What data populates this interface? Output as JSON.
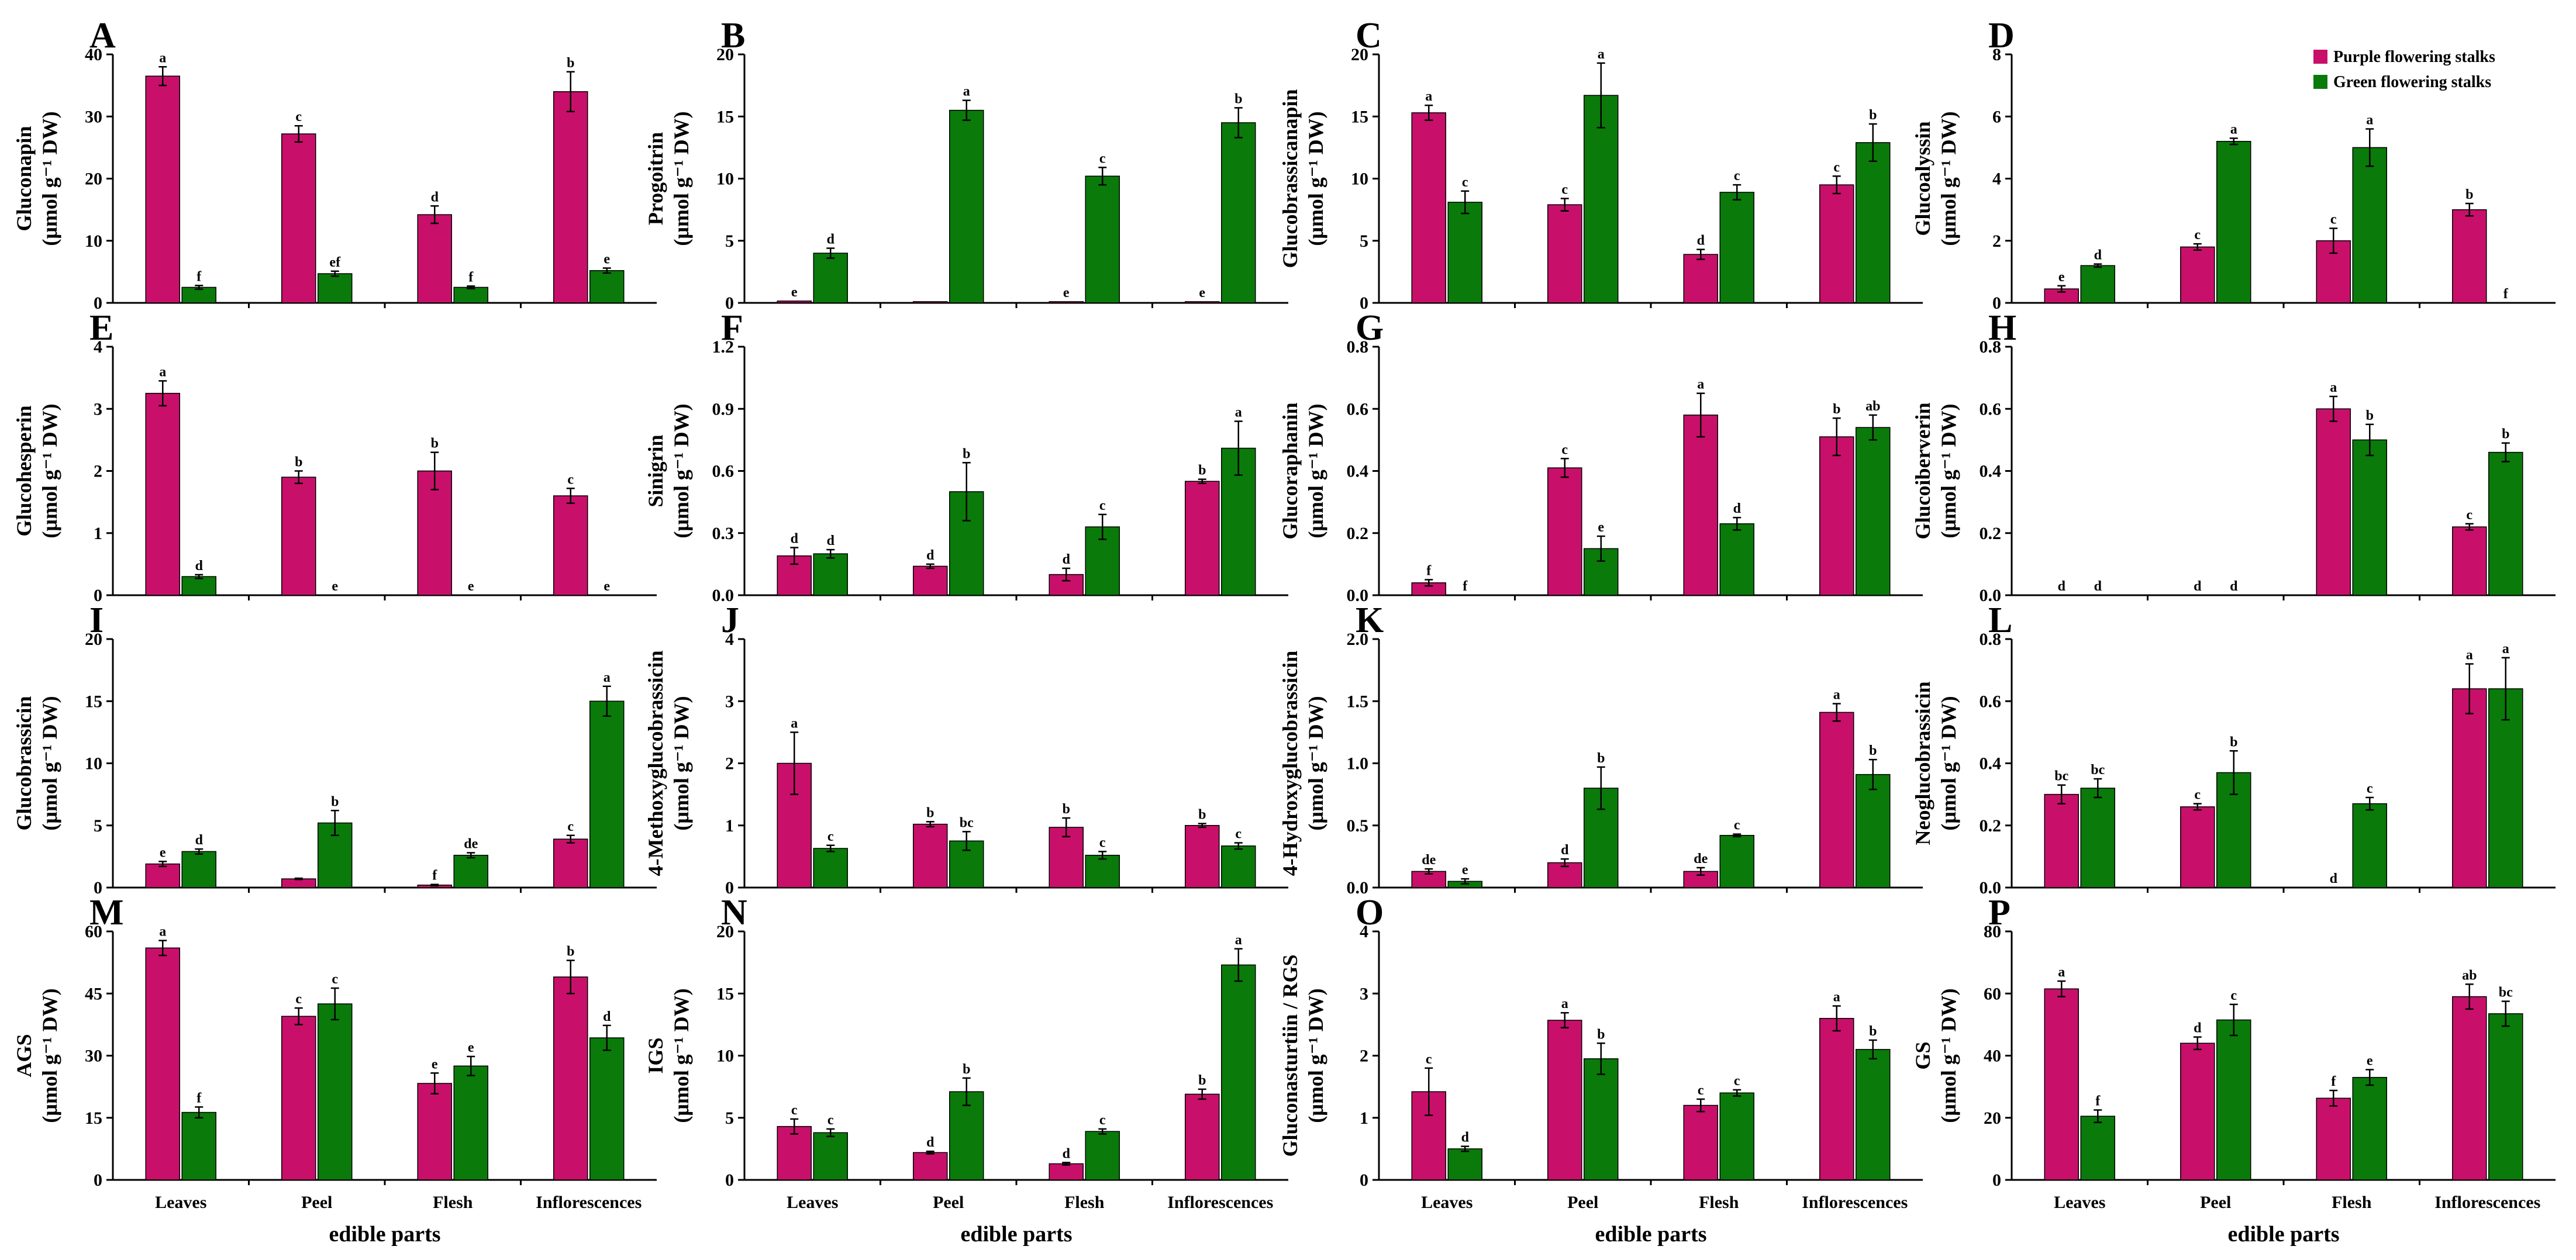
{
  "colors": {
    "purple": "#C8106A",
    "green": "#0A7A0A"
  },
  "legend": {
    "purple": "Purple flowering stalks",
    "green": "Green flowering stalks"
  },
  "xlabel": "edible parts",
  "chart_data": [
    {
      "panel": "A",
      "type": "bar",
      "ylabel1": "Gluconapin",
      "ylabel2": "(μmol g⁻¹ DW)",
      "ylim": [
        0,
        40
      ],
      "ticks": [
        "0",
        "10",
        "20",
        "30",
        "40"
      ],
      "categories": [
        "Leaves",
        "Peel",
        "Flesh",
        "Inflorescences"
      ],
      "series": [
        {
          "name": "Purple flowering stalks",
          "values": [
            36.5,
            27.2,
            14.2,
            34.0
          ],
          "errors": [
            1.5,
            1.3,
            1.4,
            3.2
          ],
          "letters": [
            "a",
            "c",
            "d",
            "b"
          ]
        },
        {
          "name": "Green flowering stalks",
          "values": [
            2.5,
            4.7,
            2.5,
            5.2
          ],
          "errors": [
            0.3,
            0.4,
            0.2,
            0.4
          ],
          "letters": [
            "f",
            "ef",
            "f",
            "e"
          ]
        }
      ]
    },
    {
      "panel": "B",
      "type": "bar",
      "ylabel1": "Progoitrin",
      "ylabel2": "(μmol g⁻¹ DW)",
      "ylim": [
        0,
        20
      ],
      "ticks": [
        "0",
        "5",
        "10",
        "15",
        "20"
      ],
      "categories": [
        "Leaves",
        "Peel",
        "Flesh",
        "Inflorescences"
      ],
      "series": [
        {
          "name": "Purple flowering stalks",
          "values": [
            0.15,
            0.1,
            0.1,
            0.1
          ],
          "errors": [
            0,
            0,
            0,
            0
          ],
          "letters": [
            "e",
            "",
            "e",
            "e"
          ]
        },
        {
          "name": "Green flowering stalks",
          "values": [
            4.0,
            15.5,
            10.2,
            14.5
          ],
          "errors": [
            0.4,
            0.8,
            0.7,
            1.2
          ],
          "letters": [
            "d",
            "a",
            "c",
            "b"
          ]
        }
      ]
    },
    {
      "panel": "C",
      "type": "bar",
      "ylabel1": "Glucobrassicanapin",
      "ylabel2": "(μmol g⁻¹ DW)",
      "ylim": [
        0,
        20
      ],
      "ticks": [
        "0",
        "5",
        "10",
        "15",
        "20"
      ],
      "categories": [
        "Leaves",
        "Peel",
        "Flesh",
        "Inflorescences"
      ],
      "series": [
        {
          "name": "Purple flowering stalks",
          "values": [
            15.3,
            7.9,
            3.9,
            9.5
          ],
          "errors": [
            0.6,
            0.5,
            0.4,
            0.7
          ],
          "letters": [
            "a",
            "c",
            "d",
            "c"
          ]
        },
        {
          "name": "Green flowering stalks",
          "values": [
            8.1,
            16.7,
            8.9,
            12.9
          ],
          "errors": [
            0.9,
            2.6,
            0.6,
            1.5
          ],
          "letters": [
            "c",
            "a",
            "c",
            "b"
          ]
        }
      ]
    },
    {
      "panel": "D",
      "type": "bar",
      "ylabel1": "Glucoalyssin",
      "ylabel2": "(μmol g⁻¹ DW)",
      "ylim": [
        0,
        8
      ],
      "ticks": [
        "0",
        "2",
        "4",
        "6",
        "8"
      ],
      "categories": [
        "Leaves",
        "Peel",
        "Flesh",
        "Inflorescences"
      ],
      "series": [
        {
          "name": "Purple flowering stalks",
          "values": [
            0.45,
            1.8,
            2.0,
            3.0
          ],
          "errors": [
            0.1,
            0.1,
            0.4,
            0.2
          ],
          "letters": [
            "e",
            "c",
            "c",
            "b"
          ]
        },
        {
          "name": "Green flowering stalks",
          "values": [
            1.2,
            5.2,
            5.0,
            0.0
          ],
          "errors": [
            0.05,
            0.1,
            0.6,
            0
          ],
          "letters": [
            "d",
            "a",
            "a",
            "f"
          ]
        }
      ]
    },
    {
      "panel": "E",
      "type": "bar",
      "ylabel1": "Glucohesperin",
      "ylabel2": "(μmol g⁻¹ DW)",
      "ylim": [
        0,
        4
      ],
      "ticks": [
        "0",
        "1",
        "2",
        "3",
        "4"
      ],
      "categories": [
        "Leaves",
        "Peel",
        "Flesh",
        "Inflorescences"
      ],
      "series": [
        {
          "name": "Purple flowering stalks",
          "values": [
            3.25,
            1.9,
            2.0,
            1.6
          ],
          "errors": [
            0.2,
            0.1,
            0.3,
            0.12
          ],
          "letters": [
            "a",
            "b",
            "b",
            "c"
          ]
        },
        {
          "name": "Green flowering stalks",
          "values": [
            0.3,
            0.0,
            0.0,
            0.0
          ],
          "errors": [
            0.03,
            0,
            0,
            0
          ],
          "letters": [
            "d",
            "e",
            "e",
            "e"
          ]
        }
      ]
    },
    {
      "panel": "F",
      "type": "bar",
      "ylabel1": "Sinigrin",
      "ylabel2": "(μmol g⁻¹ DW)",
      "ylim": [
        0,
        1.2
      ],
      "ticks": [
        "0.0",
        "0.3",
        "0.6",
        "0.9",
        "1.2"
      ],
      "categories": [
        "Leaves",
        "Peel",
        "Flesh",
        "Inflorescences"
      ],
      "series": [
        {
          "name": "Purple flowering stalks",
          "values": [
            0.19,
            0.14,
            0.1,
            0.55
          ],
          "errors": [
            0.04,
            0.01,
            0.03,
            0.01
          ],
          "letters": [
            "d",
            "d",
            "d",
            "b"
          ]
        },
        {
          "name": "Green flowering stalks",
          "values": [
            0.2,
            0.5,
            0.33,
            0.71
          ],
          "errors": [
            0.02,
            0.14,
            0.06,
            0.13
          ],
          "letters": [
            "d",
            "b",
            "c",
            "a"
          ]
        }
      ]
    },
    {
      "panel": "G",
      "type": "bar",
      "ylabel1": "Glucoraphanin",
      "ylabel2": "(μmol g⁻¹ DW)",
      "ylim": [
        0,
        0.8
      ],
      "ticks": [
        "0.0",
        "0.2",
        "0.4",
        "0.6",
        "0.8"
      ],
      "categories": [
        "Leaves",
        "Peel",
        "Flesh",
        "Inflorescences"
      ],
      "series": [
        {
          "name": "Purple flowering stalks",
          "values": [
            0.04,
            0.41,
            0.58,
            0.51
          ],
          "errors": [
            0.01,
            0.03,
            0.07,
            0.06
          ],
          "letters": [
            "f",
            "c",
            "a",
            "b"
          ]
        },
        {
          "name": "Green flowering stalks",
          "values": [
            0.0,
            0.15,
            0.23,
            0.54
          ],
          "errors": [
            0,
            0.04,
            0.02,
            0.04
          ],
          "letters": [
            "f",
            "e",
            "d",
            "ab"
          ]
        }
      ]
    },
    {
      "panel": "H",
      "type": "bar",
      "ylabel1": "Glucoiberverin",
      "ylabel2": "(μmol g⁻¹ DW)",
      "ylim": [
        0,
        0.8
      ],
      "ticks": [
        "0.0",
        "0.2",
        "0.4",
        "0.6",
        "0.8"
      ],
      "categories": [
        "Leaves",
        "Peel",
        "Flesh",
        "Inflorescences"
      ],
      "series": [
        {
          "name": "Purple flowering stalks",
          "values": [
            0.0,
            0.0,
            0.6,
            0.22
          ],
          "errors": [
            0,
            0,
            0.04,
            0.01
          ],
          "letters": [
            "d",
            "d",
            "a",
            "c"
          ]
        },
        {
          "name": "Green flowering stalks",
          "values": [
            0.0,
            0.0,
            0.5,
            0.46
          ],
          "errors": [
            0,
            0,
            0.05,
            0.03
          ],
          "letters": [
            "d",
            "d",
            "b",
            "b"
          ]
        }
      ]
    },
    {
      "panel": "I",
      "type": "bar",
      "ylabel1": "Glucobrassicin",
      "ylabel2": "(μmol g⁻¹ DW)",
      "ylim": [
        0,
        20
      ],
      "ticks": [
        "0",
        "5",
        "10",
        "15",
        "20"
      ],
      "categories": [
        "Leaves",
        "Peel",
        "Flesh",
        "Inflorescences"
      ],
      "series": [
        {
          "name": "Purple flowering stalks",
          "values": [
            1.9,
            0.7,
            0.2,
            3.9
          ],
          "errors": [
            0.2,
            0.05,
            0.05,
            0.3
          ],
          "letters": [
            "e",
            "",
            "f",
            "c"
          ]
        },
        {
          "name": "Green flowering stalks",
          "values": [
            2.9,
            5.2,
            2.6,
            15.0
          ],
          "errors": [
            0.2,
            1.0,
            0.2,
            1.2
          ],
          "letters": [
            "d",
            "b",
            "de",
            "a"
          ]
        }
      ]
    },
    {
      "panel": "J",
      "type": "bar",
      "ylabel1": "4-Methoxyglucobrassicin",
      "ylabel2": "(μmol g⁻¹ DW)",
      "ylim": [
        0,
        4
      ],
      "ticks": [
        "0",
        "1",
        "2",
        "3",
        "4"
      ],
      "categories": [
        "Leaves",
        "Peel",
        "Flesh",
        "Inflorescences"
      ],
      "series": [
        {
          "name": "Purple flowering stalks",
          "values": [
            2.0,
            1.02,
            0.97,
            1.0
          ],
          "errors": [
            0.5,
            0.04,
            0.15,
            0.03
          ],
          "letters": [
            "a",
            "b",
            "b",
            "b"
          ]
        },
        {
          "name": "Green flowering stalks",
          "values": [
            0.63,
            0.75,
            0.52,
            0.67
          ],
          "errors": [
            0.05,
            0.15,
            0.06,
            0.05
          ],
          "letters": [
            "c",
            "bc",
            "c",
            "c"
          ]
        }
      ]
    },
    {
      "panel": "K",
      "type": "bar",
      "ylabel1": "4-Hydroxyglucobrassicin",
      "ylabel2": "(μmol g⁻¹ DW)",
      "ylim": [
        0,
        2
      ],
      "ticks": [
        "0.0",
        "0.5",
        "1.0",
        "1.5",
        "2.0"
      ],
      "categories": [
        "Leaves",
        "Peel",
        "Flesh",
        "Inflorescences"
      ],
      "series": [
        {
          "name": "Purple flowering stalks",
          "values": [
            0.13,
            0.2,
            0.13,
            1.41
          ],
          "errors": [
            0.02,
            0.03,
            0.03,
            0.07
          ],
          "letters": [
            "de",
            "d",
            "de",
            "a"
          ]
        },
        {
          "name": "Green flowering stalks",
          "values": [
            0.05,
            0.8,
            0.42,
            0.91
          ],
          "errors": [
            0.02,
            0.17,
            0.01,
            0.12
          ],
          "letters": [
            "e",
            "b",
            "c",
            "b"
          ]
        }
      ]
    },
    {
      "panel": "L",
      "type": "bar",
      "ylabel1": "Neoglucobrassicin",
      "ylabel2": "(μmol g⁻¹ DW)",
      "ylim": [
        0,
        0.8
      ],
      "ticks": [
        "0.0",
        "0.2",
        "0.4",
        "0.6",
        "0.8"
      ],
      "categories": [
        "Leaves",
        "Peel",
        "Flesh",
        "Inflorescences"
      ],
      "series": [
        {
          "name": "Purple flowering stalks",
          "values": [
            0.3,
            0.26,
            0.0,
            0.64
          ],
          "errors": [
            0.03,
            0.01,
            0,
            0.08
          ],
          "letters": [
            "bc",
            "c",
            "d",
            "a"
          ]
        },
        {
          "name": "Green flowering stalks",
          "values": [
            0.32,
            0.37,
            0.27,
            0.64
          ],
          "errors": [
            0.03,
            0.07,
            0.02,
            0.1
          ],
          "letters": [
            "bc",
            "b",
            "c",
            "a"
          ]
        }
      ]
    },
    {
      "panel": "M",
      "type": "bar",
      "ylabel1": "AGS",
      "ylabel2": "(μmol g⁻¹ DW)",
      "ylim": [
        0,
        60
      ],
      "ticks": [
        "0",
        "15",
        "30",
        "45",
        "60"
      ],
      "categories": [
        "Leaves",
        "Peel",
        "Flesh",
        "Inflorescences"
      ],
      "series": [
        {
          "name": "Purple flowering stalks",
          "values": [
            56.0,
            39.5,
            23.3,
            49.0
          ],
          "errors": [
            1.8,
            2.0,
            2.5,
            4.0
          ],
          "letters": [
            "a",
            "c",
            "e",
            "b"
          ]
        },
        {
          "name": "Green flowering stalks",
          "values": [
            16.3,
            42.5,
            27.5,
            34.3
          ],
          "errors": [
            1.3,
            3.8,
            2.3,
            3.0
          ],
          "letters": [
            "f",
            "c",
            "e",
            "d"
          ]
        }
      ]
    },
    {
      "panel": "N",
      "type": "bar",
      "ylabel1": "IGS",
      "ylabel2": "(μmol g⁻¹ DW)",
      "ylim": [
        0,
        20
      ],
      "ticks": [
        "0",
        "5",
        "10",
        "15",
        "20"
      ],
      "categories": [
        "Leaves",
        "Peel",
        "Flesh",
        "Inflorescences"
      ],
      "series": [
        {
          "name": "Purple flowering stalks",
          "values": [
            4.3,
            2.2,
            1.3,
            6.9
          ],
          "errors": [
            0.6,
            0.1,
            0.1,
            0.4
          ],
          "letters": [
            "c",
            "d",
            "d",
            "b"
          ]
        },
        {
          "name": "Green flowering stalks",
          "values": [
            3.8,
            7.1,
            3.9,
            17.3
          ],
          "errors": [
            0.3,
            1.1,
            0.2,
            1.3
          ],
          "letters": [
            "c",
            "b",
            "c",
            "a"
          ]
        }
      ]
    },
    {
      "panel": "O",
      "type": "bar",
      "ylabel1": "Gluconasturtiin / RGS",
      "ylabel2": "(μmol g⁻¹ DW)",
      "ylim": [
        0,
        4
      ],
      "ticks": [
        "0",
        "1",
        "2",
        "3",
        "4"
      ],
      "categories": [
        "Leaves",
        "Peel",
        "Flesh",
        "Inflorescences"
      ],
      "series": [
        {
          "name": "Purple flowering stalks",
          "values": [
            1.42,
            2.57,
            1.2,
            2.6
          ],
          "errors": [
            0.38,
            0.12,
            0.1,
            0.2
          ],
          "letters": [
            "c",
            "a",
            "c",
            "a"
          ]
        },
        {
          "name": "Green flowering stalks",
          "values": [
            0.5,
            1.95,
            1.4,
            2.1
          ],
          "errors": [
            0.04,
            0.25,
            0.05,
            0.15
          ],
          "letters": [
            "d",
            "b",
            "c",
            "b"
          ]
        }
      ]
    },
    {
      "panel": "P",
      "type": "bar",
      "ylabel1": "GS",
      "ylabel2": "(μmol g⁻¹ DW)",
      "ylim": [
        0,
        80
      ],
      "ticks": [
        "0",
        "20",
        "40",
        "60",
        "80"
      ],
      "categories": [
        "Leaves",
        "Peel",
        "Flesh",
        "Inflorescences"
      ],
      "series": [
        {
          "name": "Purple flowering stalks",
          "values": [
            61.5,
            44.0,
            26.3,
            59.0
          ],
          "errors": [
            2.5,
            2.0,
            2.5,
            4.0
          ],
          "letters": [
            "a",
            "d",
            "f",
            "ab"
          ]
        },
        {
          "name": "Green flowering stalks",
          "values": [
            20.5,
            51.5,
            33.0,
            53.5
          ],
          "errors": [
            2.0,
            5.0,
            2.5,
            4.0
          ],
          "letters": [
            "f",
            "c",
            "e",
            "bc"
          ]
        }
      ]
    }
  ]
}
